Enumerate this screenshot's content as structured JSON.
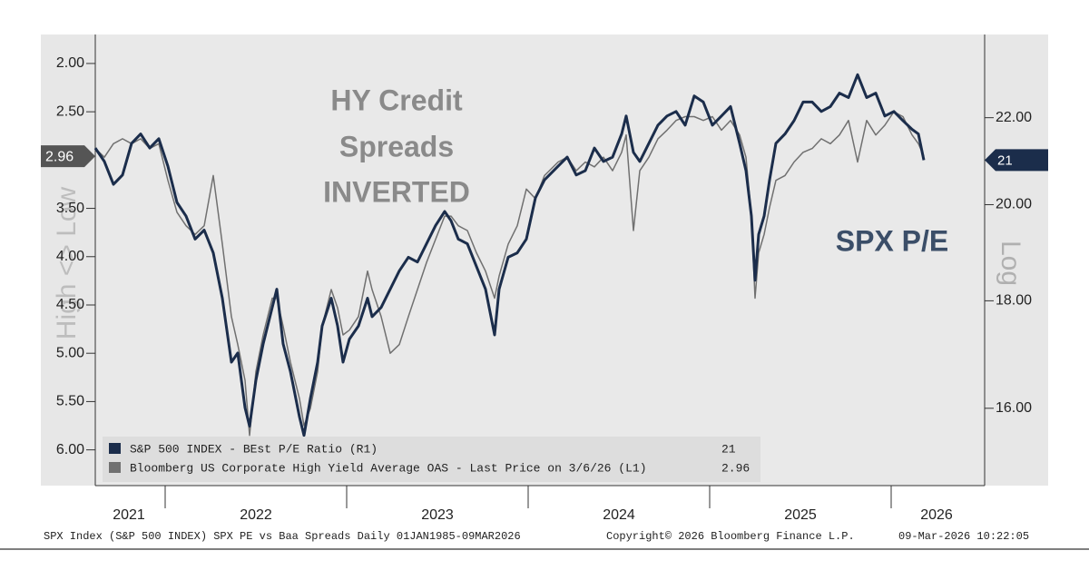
{
  "chart_data": {
    "type": "line",
    "annotation_left": [
      "HY Credit",
      "Spreads",
      "INVERTED"
    ],
    "annotation_right": "SPX P/E",
    "ylabel": "High <> Low",
    "y2label": "Log",
    "xlim": [
      2021.615,
      2026.515
    ],
    "xticks": [
      2022,
      2023,
      2024,
      2025,
      2026
    ],
    "xlabels": [
      {
        "value": 2021.8,
        "label": "2021"
      },
      {
        "value": 2022.5,
        "label": "2022"
      },
      {
        "value": 2023.5,
        "label": "2023"
      },
      {
        "value": 2024.5,
        "label": "2024"
      },
      {
        "value": 2025.5,
        "label": "2025"
      },
      {
        "value": 2026.25,
        "label": "2026"
      }
    ],
    "ylim": [
      6.37,
      1.7
    ],
    "yticks": [
      {
        "value": 2,
        "label": "2.00"
      },
      {
        "value": 2.5,
        "label": "2.50"
      },
      {
        "value": 3.5,
        "label": "3.50"
      },
      {
        "value": 4,
        "label": "4.00"
      },
      {
        "value": 4.5,
        "label": "4.50"
      },
      {
        "value": 5,
        "label": "5.00"
      },
      {
        "value": 5.5,
        "label": "5.50"
      },
      {
        "value": 6,
        "label": "6.00"
      }
    ],
    "y2lim": [
      14.7,
      24.1
    ],
    "y2log": true,
    "y2ticks": [
      {
        "value": 16,
        "label": "16.00"
      },
      {
        "value": 18,
        "label": "18.00"
      },
      {
        "value": 20,
        "label": "20.00"
      },
      {
        "value": 22,
        "label": "22.00"
      }
    ],
    "x": [
      2021.615,
      2021.665,
      2021.715,
      2021.765,
      2021.815,
      2021.865,
      2021.915,
      2021.965,
      2022.015,
      2022.065,
      2022.115,
      2022.165,
      2022.215,
      2022.265,
      2022.315,
      2022.365,
      2022.4,
      2022.44,
      2022.465,
      2022.5,
      2022.54,
      2022.59,
      2022.615,
      2022.65,
      2022.69,
      2022.74,
      2022.765,
      2022.8,
      2022.84,
      2022.865,
      2022.915,
      2022.95,
      2022.98,
      2023.015,
      2023.065,
      2023.115,
      2023.14,
      2023.19,
      2023.24,
      2023.29,
      2023.34,
      2023.39,
      2023.44,
      2023.49,
      2023.54,
      2023.575,
      2023.615,
      2023.665,
      2023.715,
      2023.765,
      2023.815,
      2023.84,
      2023.89,
      2023.94,
      2023.99,
      2024.04,
      2024.09,
      2024.165,
      2024.215,
      2024.265,
      2024.315,
      2024.365,
      2024.415,
      2024.465,
      2024.515,
      2024.54,
      2024.58,
      2024.615,
      2024.665,
      2024.715,
      2024.765,
      2024.815,
      2024.865,
      2024.915,
      2024.965,
      2025.015,
      2025.065,
      2025.115,
      2025.165,
      2025.2,
      2025.23,
      2025.25,
      2025.27,
      2025.3,
      2025.33,
      2025.365,
      2025.415,
      2025.465,
      2025.515,
      2025.565,
      2025.615,
      2025.665,
      2025.715,
      2025.765,
      2025.815,
      2025.865,
      2025.915,
      2025.965,
      2026.015,
      2026.065,
      2026.115,
      2026.15,
      2026.18
    ],
    "series": [
      {
        "name": "S&P 500 INDEX - BEst P/E Ratio (R1)",
        "color": "#1b2d4b",
        "axis": "y2",
        "last_label": "21",
        "values": [
          21.28,
          20.97,
          20.45,
          20.66,
          21.39,
          21.61,
          21.28,
          21.5,
          20.86,
          20.05,
          19.75,
          19.26,
          19.45,
          18.97,
          18.05,
          16.83,
          17.0,
          16.01,
          15.69,
          16.5,
          17.17,
          17.87,
          18.23,
          17.17,
          16.66,
          15.85,
          15.53,
          16.17,
          16.83,
          17.51,
          18.05,
          17.51,
          16.83,
          17.26,
          17.51,
          18.05,
          17.69,
          17.87,
          18.23,
          18.6,
          18.88,
          18.78,
          19.16,
          19.55,
          19.85,
          19.65,
          19.26,
          19.16,
          18.69,
          18.23,
          17.34,
          18.23,
          18.88,
          18.97,
          19.26,
          20.15,
          20.55,
          20.86,
          21.07,
          20.66,
          20.76,
          21.28,
          20.97,
          21.07,
          21.61,
          22.04,
          21.18,
          20.97,
          21.39,
          21.82,
          22.04,
          22.15,
          21.82,
          22.53,
          22.38,
          21.82,
          22.04,
          22.27,
          21.39,
          20.76,
          19.75,
          18.41,
          19.36,
          19.75,
          20.55,
          21.39,
          21.61,
          21.93,
          22.38,
          22.38,
          22.15,
          22.27,
          22.6,
          22.49,
          23.06,
          22.49,
          22.6,
          22.04,
          22.15,
          21.93,
          21.72,
          21.61,
          21.0
        ]
      },
      {
        "name": "Bloomberg US Corporate High Yield Average OAS - Last Price on 3/6/26 (L1)",
        "color": "#707070",
        "axis": "y",
        "last_label": "2.96",
        "values": [
          2.88,
          2.97,
          2.83,
          2.78,
          2.83,
          2.78,
          2.88,
          2.83,
          3.21,
          3.54,
          3.68,
          3.77,
          3.68,
          3.16,
          3.87,
          4.62,
          4.91,
          5.28,
          5.85,
          5.19,
          4.81,
          4.43,
          4.43,
          4.72,
          5.09,
          5.47,
          5.75,
          5.57,
          5.19,
          4.72,
          4.34,
          4.53,
          4.81,
          4.76,
          4.62,
          4.15,
          4.34,
          4.62,
          5.0,
          4.91,
          4.62,
          4.34,
          4.06,
          3.82,
          3.58,
          3.58,
          3.68,
          3.73,
          3.96,
          4.15,
          4.43,
          4.2,
          3.87,
          3.68,
          3.3,
          3.4,
          3.16,
          3.02,
          2.97,
          3.11,
          3.02,
          3.07,
          2.97,
          3.11,
          2.92,
          2.74,
          3.73,
          3.11,
          2.97,
          2.78,
          2.69,
          2.59,
          2.55,
          2.55,
          2.59,
          2.55,
          2.69,
          2.59,
          2.74,
          2.97,
          3.58,
          4.43,
          3.96,
          3.77,
          3.49,
          3.21,
          3.16,
          3.02,
          2.92,
          2.88,
          2.78,
          2.83,
          2.74,
          2.59,
          3.02,
          2.59,
          2.74,
          2.64,
          2.5,
          2.55,
          2.74,
          2.83,
          2.96
        ]
      }
    ]
  },
  "footer": {
    "left": "SPX Index (S&P 500 INDEX) SPX PE vs Baa Spreads Daily 01JAN1985-09MAR2026",
    "center": "Copyright© 2026 Bloomberg Finance L.P.",
    "right": "09-Mar-2026 10:22:05"
  }
}
